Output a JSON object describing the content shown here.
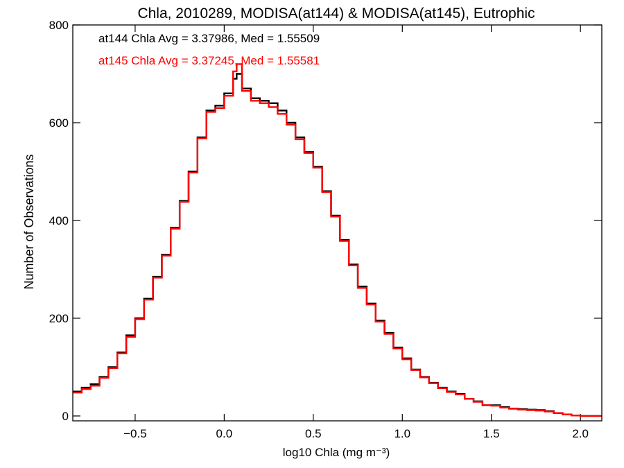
{
  "chart_data": {
    "type": "line",
    "title": "Chla, 2010289, MODISA(at144) & MODISA(at145), Eutrophic",
    "xlabel": "log10 Chla (mg m⁻³)",
    "ylabel": "Number of Observations",
    "xlim": [
      -0.85,
      2.12
    ],
    "ylim": [
      -10,
      800
    ],
    "xticks": [
      -0.5,
      0.0,
      0.5,
      1.0,
      1.5,
      2.0
    ],
    "xtick_labels": [
      "−0.5",
      "0.0",
      "0.5",
      "1.0",
      "1.5",
      "2.0"
    ],
    "yticks": [
      0,
      200,
      400,
      600,
      800
    ],
    "ytick_labels": [
      "0",
      "200",
      "400",
      "600",
      "800"
    ],
    "grid": false,
    "annotations": [
      {
        "text": "at144 Chla Avg = 3.37986, Med = 1.55509",
        "color": "#000000"
      },
      {
        "text": "at145 Chla Avg = 3.37245, Med = 1.55581",
        "color": "#ff0000"
      }
    ],
    "series": [
      {
        "color": "#000000",
        "x": [
          -0.85,
          -0.8,
          -0.75,
          -0.7,
          -0.65,
          -0.6,
          -0.55,
          -0.5,
          -0.45,
          -0.4,
          -0.35,
          -0.3,
          -0.25,
          -0.2,
          -0.15,
          -0.1,
          -0.05,
          0.0,
          0.05,
          0.07,
          0.1,
          0.15,
          0.2,
          0.25,
          0.3,
          0.35,
          0.4,
          0.45,
          0.5,
          0.55,
          0.6,
          0.65,
          0.7,
          0.75,
          0.8,
          0.85,
          0.9,
          0.95,
          1.0,
          1.05,
          1.1,
          1.15,
          1.2,
          1.25,
          1.3,
          1.35,
          1.4,
          1.45,
          1.5,
          1.55,
          1.6,
          1.65,
          1.7,
          1.75,
          1.8,
          1.85,
          1.9,
          1.95,
          2.0,
          2.05,
          2.12
        ],
        "y": [
          50,
          58,
          65,
          80,
          100,
          130,
          165,
          200,
          240,
          285,
          330,
          385,
          440,
          500,
          570,
          625,
          635,
          660,
          690,
          700,
          670,
          650,
          645,
          640,
          625,
          600,
          570,
          540,
          510,
          460,
          410,
          360,
          310,
          265,
          230,
          195,
          170,
          140,
          118,
          95,
          80,
          68,
          58,
          50,
          45,
          35,
          30,
          22,
          22,
          18,
          15,
          14,
          13,
          12,
          10,
          6,
          3,
          1,
          0,
          0,
          0
        ]
      },
      {
        "color": "#ff0000",
        "x": [
          -0.85,
          -0.8,
          -0.75,
          -0.7,
          -0.65,
          -0.6,
          -0.55,
          -0.5,
          -0.45,
          -0.4,
          -0.35,
          -0.3,
          -0.25,
          -0.2,
          -0.15,
          -0.1,
          -0.05,
          0.0,
          0.05,
          0.07,
          0.1,
          0.15,
          0.2,
          0.25,
          0.3,
          0.35,
          0.4,
          0.45,
          0.5,
          0.55,
          0.6,
          0.65,
          0.7,
          0.75,
          0.8,
          0.85,
          0.9,
          0.95,
          1.0,
          1.05,
          1.1,
          1.15,
          1.2,
          1.25,
          1.3,
          1.35,
          1.4,
          1.45,
          1.5,
          1.55,
          1.6,
          1.65,
          1.7,
          1.75,
          1.8,
          1.85,
          1.9,
          1.95,
          2.0,
          2.05,
          2.12
        ],
        "y": [
          48,
          55,
          62,
          78,
          98,
          128,
          162,
          198,
          238,
          283,
          328,
          383,
          438,
          498,
          568,
          622,
          630,
          655,
          705,
          720,
          665,
          645,
          640,
          632,
          618,
          596,
          566,
          538,
          508,
          458,
          408,
          358,
          308,
          262,
          228,
          193,
          168,
          138,
          116,
          94,
          79,
          67,
          57,
          49,
          44,
          35,
          29,
          22,
          21,
          17,
          15,
          13,
          12,
          11,
          9,
          6,
          3,
          1,
          0,
          0,
          0
        ]
      }
    ]
  }
}
